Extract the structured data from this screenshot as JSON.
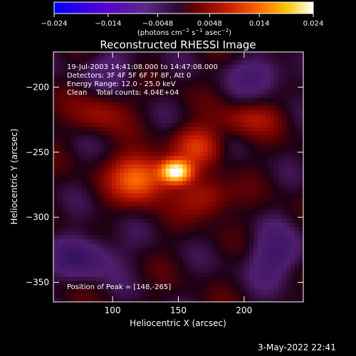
{
  "colorbar": {
    "tick_labels": [
      "−0.024",
      "−0.014",
      "−0.0048",
      "0.0048",
      "0.014",
      "0.024"
    ],
    "ticks": [
      -0.024,
      -0.014,
      -0.0048,
      0.0048,
      0.014,
      0.024
    ],
    "range": [
      -0.024,
      0.024
    ],
    "units": "(photons cm",
    "units_exp1": "−2",
    "units_mid": " s",
    "units_exp2": "−1",
    "units_mid2": " asec",
    "units_exp3": "−2",
    "units_end": ")",
    "colors": [
      "#0000ff",
      "#6600cc",
      "#4a1a6a",
      "#300030",
      "#7a0000",
      "#e03000",
      "#ff9000",
      "#ffe000",
      "#ffffff"
    ]
  },
  "chart_data": {
    "type": "heatmap",
    "title": "Reconstructed RHESSI Image",
    "xlabel": "Heliocentric X (arcsec)",
    "ylabel": "Heliocentric Y (arcsec)",
    "xlim": [
      55,
      245
    ],
    "ylim": [
      -365,
      -173
    ],
    "x_ticks": [
      100,
      150,
      200
    ],
    "y_ticks": [
      -200,
      -250,
      -300,
      -350
    ],
    "peak": {
      "x": 148,
      "y": -265
    },
    "color_scale": "solar-hot",
    "sources": [
      {
        "x": 148,
        "y": -265,
        "amp": 1.0,
        "sx": 8,
        "sy": 6
      },
      {
        "x": 120,
        "y": -270,
        "amp": 0.55,
        "sx": 14,
        "sy": 12
      },
      {
        "x": 165,
        "y": -245,
        "amp": 0.35,
        "sx": 12,
        "sy": 10
      },
      {
        "x": 170,
        "y": -285,
        "amp": 0.25,
        "sx": 14,
        "sy": 10
      },
      {
        "x": 205,
        "y": -225,
        "amp": 0.2,
        "sx": 16,
        "sy": 8
      },
      {
        "x": 90,
        "y": -220,
        "amp": 0.18,
        "sx": 14,
        "sy": 10
      },
      {
        "x": 80,
        "y": -330,
        "amp": -0.2,
        "sx": 18,
        "sy": 12
      },
      {
        "x": 225,
        "y": -330,
        "amp": -0.18,
        "sx": 16,
        "sy": 14
      },
      {
        "x": 215,
        "y": -190,
        "amp": -0.15,
        "sx": 18,
        "sy": 10
      },
      {
        "x": 100,
        "y": -185,
        "amp": -0.12,
        "sx": 16,
        "sy": 10
      }
    ]
  },
  "info": {
    "line1": "19-Jul-2003 14:41:08.000 to 14:47:08.000",
    "line2": "Detectors: 3F 4F 5F 6F 7F 8F, Att 0",
    "line3": "Energy Range: 12.0 - 25.0 keV",
    "line4": "Clean    Total counts: 4.04E+04",
    "peak_label": "Position of Peak = [148,-265]"
  },
  "footer": {
    "date": "3-May-2022 22:41"
  }
}
